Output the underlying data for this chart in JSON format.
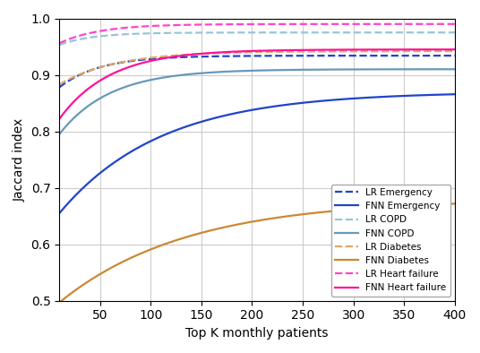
{
  "xlabel": "Top K monthly patients",
  "ylabel": "Jaccard index",
  "xlim": [
    10,
    400
  ],
  "ylim": [
    0.5,
    1.0
  ],
  "xticks": [
    50,
    100,
    150,
    200,
    250,
    300,
    350,
    400
  ],
  "yticks": [
    0.5,
    0.6,
    0.7,
    0.8,
    0.9,
    1.0
  ],
  "series": {
    "LR_Emergency": {
      "color": "#1f44cc",
      "linestyle": "--",
      "label": "LR Emergency",
      "params": {
        "a": 0.88,
        "b": 0.055,
        "c": 8.0
      }
    },
    "FNN_Emergency": {
      "color": "#1f44cc",
      "linestyle": "-",
      "label": "FNN Emergency",
      "params": {
        "a": 0.655,
        "b": 0.21,
        "c": 5.0
      }
    },
    "LR_COPD": {
      "color": "#99c4d8",
      "linestyle": "--",
      "label": "LR COPD",
      "params": {
        "a": 0.953,
        "b": 0.024,
        "c": 3.0
      }
    },
    "FNN_COPD": {
      "color": "#6699bb",
      "linestyle": "-",
      "label": "FNN COPD",
      "params": {
        "a": 0.795,
        "b": 0.115,
        "c": 4.5
      }
    },
    "LR_Diabetes": {
      "color": "#ddaa66",
      "linestyle": "--",
      "label": "LR Diabetes",
      "params": {
        "a": 0.883,
        "b": 0.065,
        "c": 7.0
      }
    },
    "FNN_Diabetes": {
      "color": "#cc8833",
      "linestyle": "-",
      "label": "FNN Diabetes",
      "params": {
        "a": 0.495,
        "b": 0.175,
        "c": 4.0
      }
    },
    "LR_Heart_failure": {
      "color": "#ff44cc",
      "linestyle": "--",
      "label": "LR Heart failure",
      "params": {
        "a": 0.956,
        "b": 0.033,
        "c": 3.5
      }
    },
    "FNN_Heart_failure": {
      "color": "#ff1199",
      "linestyle": "-",
      "label": "FNN Heart failure",
      "params": {
        "a": 0.822,
        "b": 0.118,
        "c": 4.0
      }
    }
  },
  "background_color": "#ffffff",
  "grid_color": "#cccccc"
}
